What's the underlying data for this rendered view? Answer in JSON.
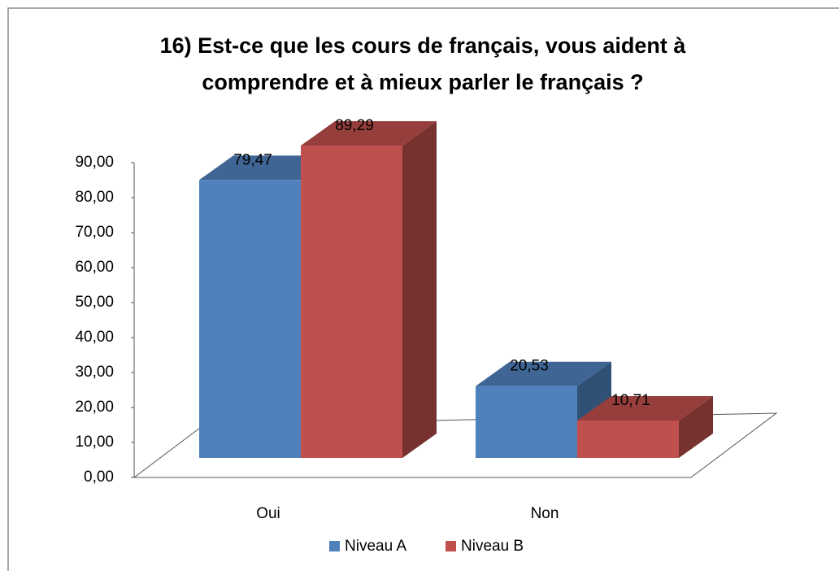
{
  "chart_data": {
    "type": "bar3d",
    "title": "16) Est-ce que les cours de français, vous aident à comprendre et à mieux parler le français ?",
    "categories": [
      "Oui",
      "Non"
    ],
    "series": [
      {
        "name": "Niveau A",
        "color": "#4f81bd",
        "values": [
          79.47,
          20.53
        ],
        "value_labels": [
          "79,47",
          "20,53"
        ]
      },
      {
        "name": "Niveau B",
        "color": "#c0504d",
        "values": [
          89.29,
          10.71
        ],
        "value_labels": [
          "89,29",
          "10,71"
        ]
      }
    ],
    "ylim": [
      0,
      90
    ],
    "yticks": [
      {
        "value": 0,
        "label": "0,00"
      },
      {
        "value": 10,
        "label": "10,00"
      },
      {
        "value": 20,
        "label": "20,00"
      },
      {
        "value": 30,
        "label": "30,00"
      },
      {
        "value": 40,
        "label": "40,00"
      },
      {
        "value": 50,
        "label": "50,00"
      },
      {
        "value": 60,
        "label": "60,00"
      },
      {
        "value": 70,
        "label": "70,00"
      },
      {
        "value": 80,
        "label": "80,00"
      },
      {
        "value": 90,
        "label": "90,00"
      }
    ],
    "legend": "bottom"
  }
}
